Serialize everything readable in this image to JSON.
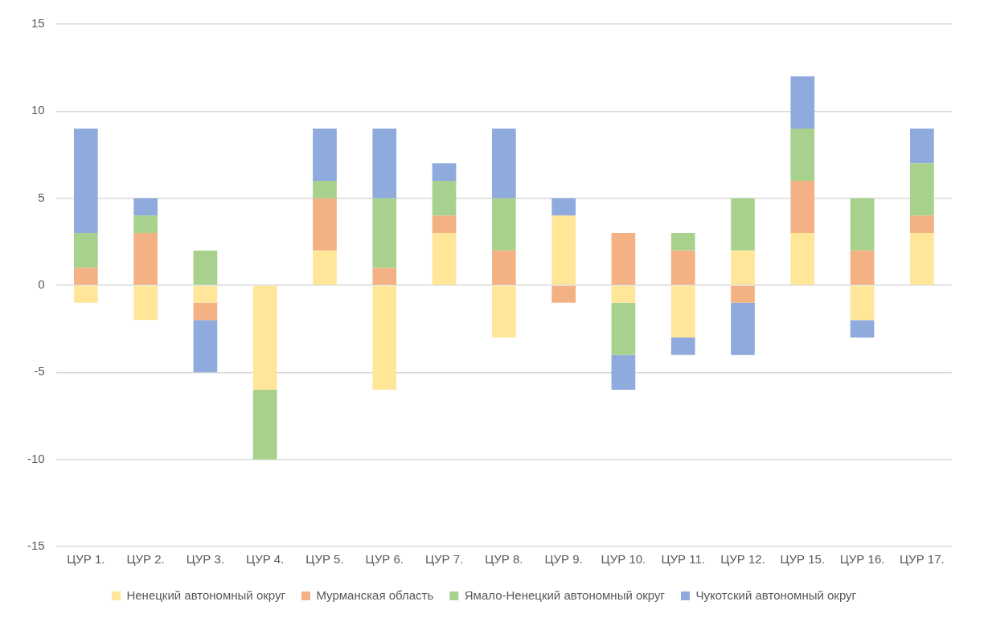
{
  "chart_data": {
    "type": "bar",
    "stacked": true,
    "categories": [
      "ЦУР 1.",
      "ЦУР 2.",
      "ЦУР 3.",
      "ЦУР 4.",
      "ЦУР 5.",
      "ЦУР 6.",
      "ЦУР 7.",
      "ЦУР 8.",
      "ЦУР 9.",
      "ЦУР 10.",
      "ЦУР 11.",
      "ЦУР 12.",
      "ЦУР 15.",
      "ЦУР 16.",
      "ЦУР 17."
    ],
    "series": [
      {
        "name": "Ненецкий автономный округ",
        "color": "#ffe699",
        "values": [
          -1,
          -2,
          -1,
          -6,
          2,
          -6,
          3,
          -3,
          4,
          -1,
          -3,
          2,
          3,
          -2,
          3
        ]
      },
      {
        "name": "Мурманская область",
        "color": "#f4b183",
        "values": [
          1,
          3,
          -1,
          null,
          3,
          1,
          1,
          2,
          -1,
          3,
          2,
          -1,
          3,
          2,
          1
        ]
      },
      {
        "name": "Ямало-Ненецкий автономный округ",
        "color": "#a9d18e",
        "values": [
          2,
          1,
          2,
          -4,
          1,
          4,
          2,
          3,
          null,
          -3,
          1,
          3,
          3,
          3,
          3
        ]
      },
      {
        "name": "Чукотский автономный округ",
        "color": "#8faadc",
        "values": [
          6,
          1,
          -3,
          null,
          3,
          4,
          1,
          4,
          1,
          -2,
          -1,
          -3,
          3,
          -1,
          2
        ]
      }
    ],
    "ylim": [
      -15,
      15
    ],
    "yticks": [
      -15,
      -10,
      -5,
      0,
      5,
      10,
      15
    ],
    "grid": "y",
    "legend": "bottom"
  }
}
